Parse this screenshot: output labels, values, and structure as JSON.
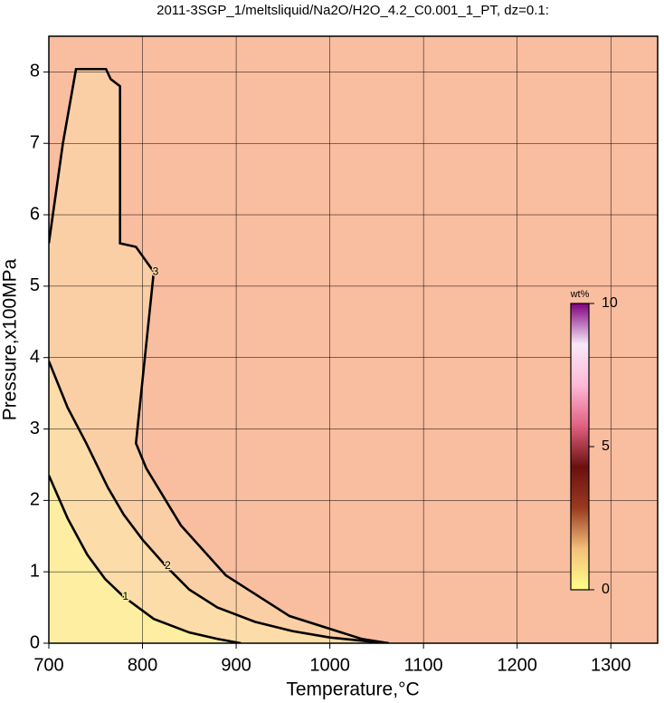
{
  "chart_data": {
    "type": "contour",
    "title": "2011-3SGP_1/meltsliquid/Na2O/H2O_4.2_C0.001_1_PT, dz=0.1:",
    "xlabel": "Temperature,°C",
    "ylabel": "Pressure,x100MPa",
    "xlim": [
      700,
      1350
    ],
    "xticks": [
      700,
      800,
      900,
      1000,
      1100,
      1200,
      1300
    ],
    "ylim": [
      0,
      8.5
    ],
    "yticks": [
      0,
      1,
      2,
      3,
      4,
      5,
      6,
      7,
      8
    ],
    "grid": true,
    "background": "#f9bd9f",
    "series": [
      {
        "name": "3",
        "fill": "#fbcfa6",
        "x": [
          700,
          715,
          729,
          761,
          766,
          776,
          776,
          793,
          812,
          793,
          804,
          841,
          889,
          957,
          1034,
          1063
        ],
        "y": [
          5.6,
          7.0,
          8.04,
          8.04,
          7.9,
          7.8,
          5.6,
          5.55,
          5.2,
          2.8,
          2.45,
          1.65,
          0.95,
          0.38,
          0.06,
          0
        ]
      },
      {
        "name": "2",
        "fill": "#fcdca8",
        "x": [
          700,
          720,
          740,
          763,
          780,
          800,
          825,
          850,
          880,
          920,
          960,
          1000,
          1060
        ],
        "y": [
          3.95,
          3.3,
          2.8,
          2.18,
          1.8,
          1.45,
          1.08,
          0.75,
          0.5,
          0.3,
          0.17,
          0.08,
          0
        ]
      },
      {
        "name": "1",
        "fill": "#fdeea2",
        "x": [
          700,
          720,
          741,
          760,
          780,
          812,
          850,
          880,
          905
        ],
        "y": [
          2.35,
          1.75,
          1.24,
          0.9,
          0.65,
          0.34,
          0.15,
          0.06,
          0
        ]
      }
    ],
    "colorbar": {
      "label": "wt%",
      "clim": [
        0,
        10
      ],
      "cticks": [
        0,
        5,
        10
      ],
      "colormap": [
        "#ffff88",
        "#f2c07a",
        "#9a3a20",
        "#6b1010",
        "#e06080",
        "#ffb8d8",
        "#f8e8f8",
        "#800080"
      ]
    }
  }
}
